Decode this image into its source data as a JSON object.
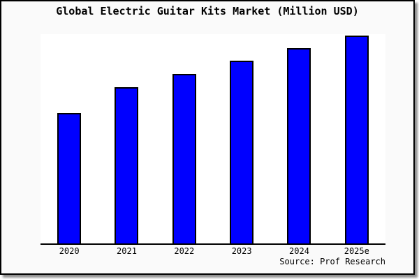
{
  "page": {
    "title": "Global Electric Guitar Kits Market (Million USD)",
    "source": "Source: Prof Research"
  },
  "chart_data": {
    "type": "bar",
    "title": "Global Electric Guitar Kits Market (Million USD)",
    "categories": [
      "2020",
      "2021",
      "2022",
      "2023",
      "2024",
      "2025e"
    ],
    "values": [
      187,
      224,
      243,
      262,
      280,
      298
    ],
    "values_note": "relative bar heights in plot pixels; no numeric y-axis shown",
    "xlabel": "",
    "ylabel": "",
    "ylim": [
      0,
      300
    ],
    "grid": false,
    "legend": "none",
    "yaxis_labels_visible": false,
    "source": "Source: Prof Research"
  },
  "colors": {
    "frame_background": "#fafafa",
    "plot_background": "#ffffff",
    "bar_fill": "#0000ff",
    "bar_border": "#000000",
    "frame_border": "#000000",
    "shadow": "#8f8f8f",
    "text": "#000000"
  }
}
